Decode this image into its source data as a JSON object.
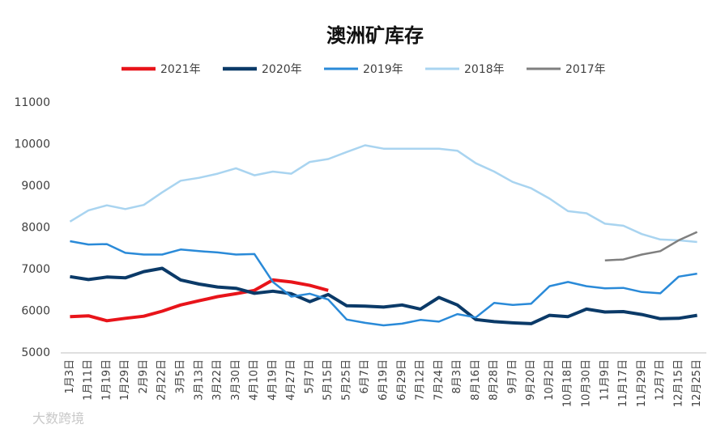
{
  "chart_data": {
    "type": "line",
    "title": "澳洲矿库存",
    "watermark": "大数跨境",
    "categories": [
      "1月3日",
      "1月11日",
      "1月19日",
      "1月29日",
      "2月9日",
      "2月22日",
      "3月5日",
      "3月13日",
      "3月22日",
      "3月30日",
      "4月10日",
      "4月19日",
      "4月27日",
      "5月7日",
      "5月15日",
      "5月25日",
      "6月7日",
      "6月19日",
      "6月29日",
      "7月12日",
      "7月24日",
      "8月3日",
      "8月16日",
      "8月28日",
      "9月7日",
      "9月20日",
      "10月2日",
      "10月18日",
      "10月30日",
      "11月9日",
      "11月17日",
      "11月29日",
      "12月7日",
      "12月15日",
      "12月25日"
    ],
    "series": [
      {
        "name": "2021年",
        "color": "#e8141a",
        "width": 4,
        "values": [
          5870,
          5890,
          5770,
          5830,
          5880,
          6000,
          6150,
          6250,
          6350,
          6420,
          6500,
          6750,
          6700,
          6620,
          6500,
          null,
          null,
          null,
          null,
          null,
          null,
          null,
          null,
          null,
          null,
          null,
          null,
          null,
          null,
          null,
          null,
          null,
          null,
          null,
          null
        ]
      },
      {
        "name": "2020年",
        "color": "#0b3a68",
        "width": 4,
        "values": [
          6830,
          6760,
          6820,
          6800,
          6950,
          7030,
          6750,
          6650,
          6580,
          6550,
          6430,
          6480,
          6420,
          6230,
          6400,
          6130,
          6120,
          6100,
          6150,
          6050,
          6330,
          6150,
          5800,
          5750,
          5720,
          5700,
          5900,
          5870,
          6050,
          5980,
          5990,
          5920,
          5820,
          5830,
          5900
        ]
      },
      {
        "name": "2019年",
        "color": "#2a8ad8",
        "width": 2.5,
        "values": [
          7680,
          7600,
          7610,
          7400,
          7360,
          7360,
          7480,
          7440,
          7410,
          7360,
          7370,
          6700,
          6350,
          6420,
          6280,
          5800,
          5720,
          5660,
          5700,
          5790,
          5750,
          5930,
          5850,
          6200,
          6150,
          6180,
          6600,
          6700,
          6600,
          6550,
          6560,
          6460,
          6430,
          6830,
          6900
        ]
      },
      {
        "name": "2018年",
        "color": "#a9d4f0",
        "width": 2.5,
        "values": [
          8150,
          8420,
          8540,
          8450,
          8550,
          8850,
          9130,
          9200,
          9300,
          9430,
          9260,
          9350,
          9300,
          9580,
          9650,
          9820,
          9980,
          9900,
          9900,
          9900,
          9900,
          9850,
          9550,
          9350,
          9100,
          8950,
          8700,
          8400,
          8350,
          8100,
          8050,
          7850,
          7720,
          7700,
          7660
        ]
      },
      {
        "name": "2017年",
        "color": "#7f7f7f",
        "width": 2.5,
        "values": [
          null,
          null,
          null,
          null,
          null,
          null,
          null,
          null,
          null,
          null,
          null,
          null,
          null,
          null,
          null,
          null,
          null,
          null,
          null,
          null,
          null,
          null,
          null,
          null,
          null,
          null,
          null,
          null,
          null,
          7220,
          7240,
          7360,
          7440,
          7700,
          7900
        ]
      }
    ],
    "ylim": [
      5000,
      11000
    ],
    "yticks": [
      5000,
      6000,
      7000,
      8000,
      9000,
      10000,
      11000
    ],
    "grid": false
  }
}
